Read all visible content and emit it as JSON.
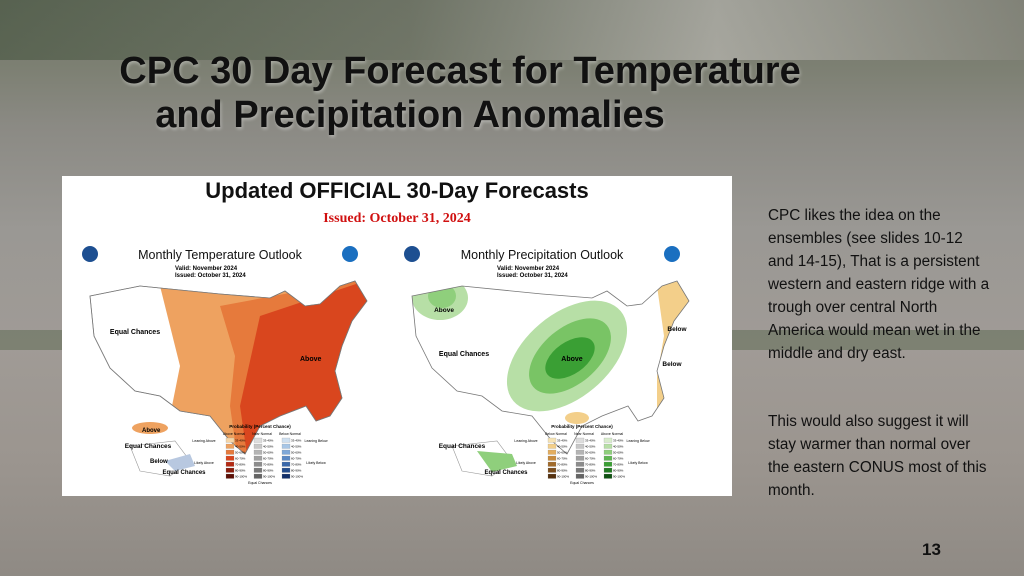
{
  "slide": {
    "title": [
      "CPC 30 Day Forecast for Temperature",
      "and Precipitation Anomalies"
    ],
    "figure": {
      "heading": "Updated OFFICIAL 30-Day Forecasts",
      "issued": "Issued: October 31, 2024",
      "maps": [
        {
          "title": "Monthly Temperature Outlook",
          "valid": "Valid:  November 2024",
          "issued": "Issued:  October 31, 2024",
          "labels": [
            "Equal Chances",
            "Above",
            "Above",
            "Equal Chances",
            "Below",
            "Equal Chances"
          ],
          "legend": {
            "title": "Probability (Percent Chance)",
            "columns": [
              "Above Normal",
              "Near Normal",
              "Below Normal"
            ],
            "sides": [
              "Leaning Above",
              "Likely Above",
              "Equal Chances",
              "Leaning Below",
              "Likely Below"
            ],
            "ranges": [
              "33-40%",
              "40-50%",
              "50-60%",
              "60-70%",
              "70-80%",
              "80-90%",
              "90-100%"
            ]
          }
        },
        {
          "title": "Monthly Precipitation Outlook",
          "valid": "Valid:  November 2024",
          "issued": "Issued:  October 31, 2024",
          "labels": [
            "Above",
            "Equal Chances",
            "Above",
            "Below",
            "Below",
            "Equal Chances",
            "Equal Chances"
          ],
          "legend": {
            "title": "Probability (Percent Chance)",
            "columns": [
              "Below Normal",
              "Near Normal",
              "Above Normal"
            ],
            "sides": [
              "Leaning Above",
              "Likely Above",
              "Equal Chances",
              "Leaning Below",
              "Likely Below"
            ],
            "ranges": [
              "33-40%",
              "40-50%",
              "50-60%",
              "60-70%",
              "70-80%",
              "80-90%",
              "90-100%"
            ]
          }
        }
      ]
    },
    "body": [
      "CPC likes the idea on the ensembles (see slides 10-12 and  14-15), That is a persistent western and eastern ridge with a trough over central  North America would mean wet in the middle and dry east.",
      "This would also suggest it will stay warmer than normal over the eastern CONUS most of this month."
    ],
    "page_number": "13"
  }
}
